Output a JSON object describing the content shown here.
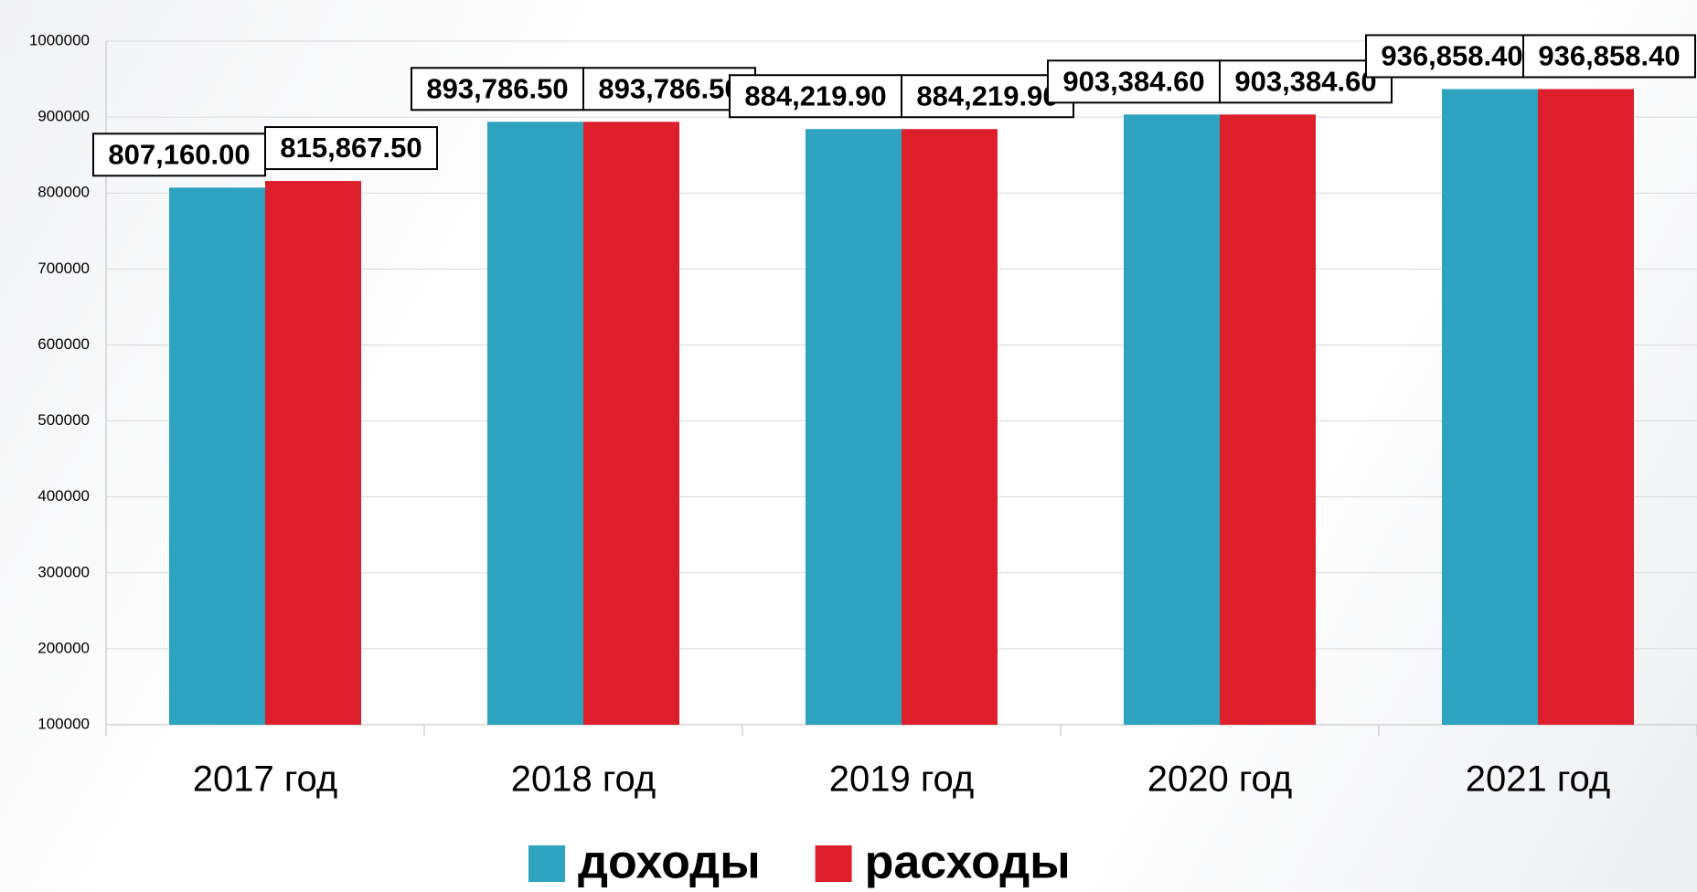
{
  "chart_data": {
    "type": "bar",
    "categories": [
      "2017 год",
      "2018 год",
      "2019 год",
      "2020 год",
      "2021 год"
    ],
    "series": [
      {
        "name": "доходы",
        "color": "#2ea3bf",
        "values": [
          807160.0,
          893786.5,
          884219.9,
          903384.6,
          936858.4
        ],
        "value_labels": [
          "807,160.00",
          "893,786.50",
          "884,219.90",
          "903,384.60",
          "936,858.40"
        ]
      },
      {
        "name": "расходы",
        "color": "#dc1f2b",
        "values": [
          815867.5,
          893786.5,
          884219.9,
          903384.6,
          936858.4
        ],
        "value_labels": [
          "815,867.50",
          "893,786.50",
          "884,219.90",
          "903,384.60",
          "936,858.40"
        ]
      }
    ],
    "ylim": [
      100000,
      1000000
    ],
    "yticks": [
      100000,
      200000,
      300000,
      400000,
      500000,
      600000,
      700000,
      800000,
      900000,
      1000000
    ],
    "grid": true,
    "legend": "bottom"
  }
}
